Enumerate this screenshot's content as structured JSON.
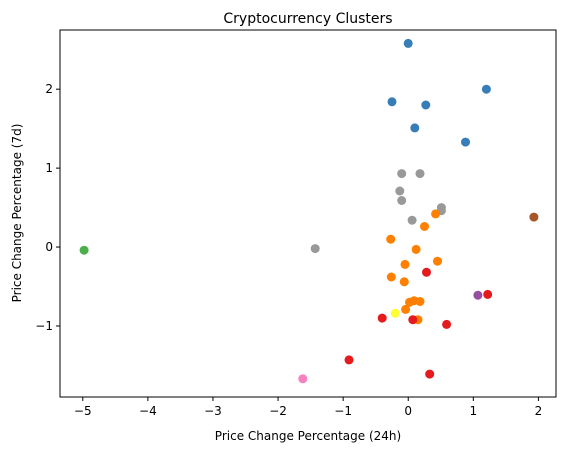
{
  "chart_data": {
    "type": "scatter",
    "title": "Cryptocurrency Clusters",
    "xlabel": "Price Change Percentage (24h)",
    "ylabel": "Price Change Percentage (7d)",
    "xlim": [
      -5.35,
      2.27
    ],
    "ylim": [
      -1.9,
      2.75
    ],
    "xticks": [
      -5,
      -4,
      -3,
      -2,
      -1,
      0,
      1,
      2
    ],
    "yticks": [
      -1,
      0,
      1,
      2
    ],
    "grid": false,
    "legend": "none",
    "clusters": [
      {
        "color": "#377eb8",
        "points": [
          [
            0.0,
            2.58
          ],
          [
            1.2,
            2.0
          ],
          [
            -0.25,
            1.84
          ],
          [
            0.27,
            1.8
          ],
          [
            0.1,
            1.51
          ],
          [
            0.88,
            1.33
          ]
        ]
      },
      {
        "color": "#999999",
        "points": [
          [
            -0.1,
            0.93
          ],
          [
            0.18,
            0.93
          ],
          [
            -0.13,
            0.71
          ],
          [
            -0.1,
            0.59
          ],
          [
            0.51,
            0.5
          ],
          [
            0.51,
            0.46
          ],
          [
            0.06,
            0.34
          ],
          [
            -1.43,
            -0.02
          ]
        ]
      },
      {
        "color": "#ff7f00",
        "points": [
          [
            0.42,
            0.42
          ],
          [
            0.25,
            0.26
          ],
          [
            -0.27,
            0.1
          ],
          [
            0.12,
            -0.03
          ],
          [
            0.45,
            -0.18
          ],
          [
            -0.05,
            -0.22
          ],
          [
            -0.26,
            -0.38
          ],
          [
            -0.06,
            -0.44
          ],
          [
            0.02,
            -0.7
          ],
          [
            0.09,
            -0.68
          ],
          [
            0.18,
            -0.69
          ],
          [
            -0.04,
            -0.79
          ],
          [
            0.15,
            -0.92
          ]
        ]
      },
      {
        "color": "#e41a1c",
        "points": [
          [
            0.28,
            -0.32
          ],
          [
            1.22,
            -0.6
          ],
          [
            -0.4,
            -0.9
          ],
          [
            0.07,
            -0.92
          ],
          [
            0.59,
            -0.98
          ],
          [
            -0.91,
            -1.43
          ],
          [
            0.33,
            -1.61
          ]
        ]
      },
      {
        "color": "#ffff33",
        "points": [
          [
            -0.2,
            -0.84
          ]
        ]
      },
      {
        "color": "#984ea3",
        "points": [
          [
            1.07,
            -0.61
          ]
        ]
      },
      {
        "color": "#4daf4a",
        "points": [
          [
            -4.98,
            -0.04
          ]
        ]
      },
      {
        "color": "#a65628",
        "points": [
          [
            1.93,
            0.38
          ]
        ]
      },
      {
        "color": "#f781bf",
        "points": [
          [
            -1.62,
            -1.67
          ]
        ]
      }
    ]
  }
}
